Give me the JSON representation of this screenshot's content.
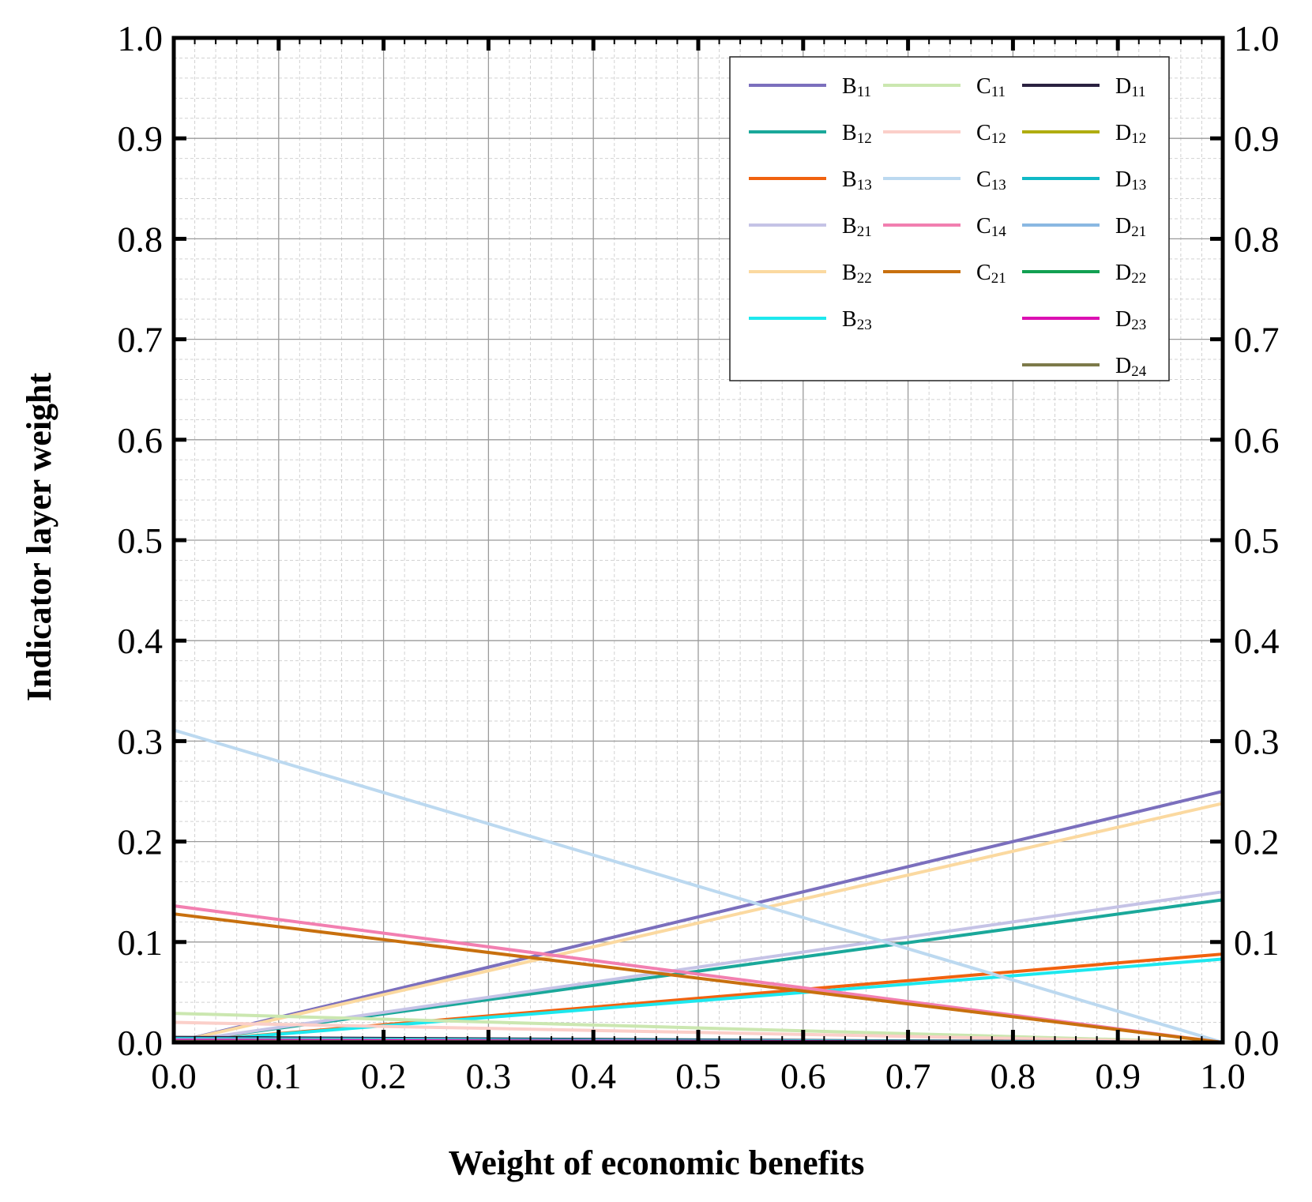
{
  "chart_data": {
    "type": "line",
    "xlabel": "Weight of economic benefits",
    "ylabel": "Indicator layer weight",
    "xlim": [
      0,
      1
    ],
    "ylim": [
      0,
      1
    ],
    "x_ticks": [
      "0.0",
      "0.1",
      "0.2",
      "0.3",
      "0.4",
      "0.5",
      "0.6",
      "0.7",
      "0.8",
      "0.9",
      "1.0"
    ],
    "y_ticks": [
      "0.0",
      "0.1",
      "0.2",
      "0.3",
      "0.4",
      "0.5",
      "0.6",
      "0.7",
      "0.8",
      "0.9",
      "1.0"
    ],
    "grid": true,
    "legend_position": "top-right",
    "x": [
      0,
      1
    ],
    "series": [
      {
        "name": "B11",
        "main": "B",
        "sub": "11",
        "color": "#7b6fbd",
        "values": [
          0.0,
          0.25
        ]
      },
      {
        "name": "B12",
        "main": "B",
        "sub": "12",
        "color": "#1aa89a",
        "values": [
          0.0,
          0.142
        ]
      },
      {
        "name": "B13",
        "main": "B",
        "sub": "13",
        "color": "#f0620f",
        "values": [
          0.0,
          0.088
        ]
      },
      {
        "name": "B21",
        "main": "B",
        "sub": "21",
        "color": "#c5c3e6",
        "values": [
          0.0,
          0.15
        ]
      },
      {
        "name": "B22",
        "main": "B",
        "sub": "22",
        "color": "#fbd9a0",
        "values": [
          0.0,
          0.238
        ]
      },
      {
        "name": "B23",
        "main": "B",
        "sub": "23",
        "color": "#1de8ee",
        "values": [
          0.0,
          0.083
        ]
      },
      {
        "name": "C11",
        "main": "C",
        "sub": "11",
        "color": "#cbe7b0",
        "values": [
          0.029,
          0.0
        ]
      },
      {
        "name": "C12",
        "main": "C",
        "sub": "12",
        "color": "#fbcfc9",
        "values": [
          0.02,
          0.0
        ]
      },
      {
        "name": "C13",
        "main": "C",
        "sub": "13",
        "color": "#bcd9f0",
        "values": [
          0.311,
          0.0
        ]
      },
      {
        "name": "C14",
        "main": "C",
        "sub": "14",
        "color": "#f27fb0",
        "values": [
          0.136,
          0.0
        ]
      },
      {
        "name": "C21",
        "main": "C",
        "sub": "21",
        "color": "#c8700e",
        "values": [
          0.128,
          0.0
        ]
      },
      {
        "name": "D11",
        "main": "D",
        "sub": "11",
        "color": "#2a2140",
        "values": [
          0.005,
          0.0
        ]
      },
      {
        "name": "D12",
        "main": "D",
        "sub": "12",
        "color": "#b0ad10",
        "values": [
          0.003,
          0.0
        ]
      },
      {
        "name": "D13",
        "main": "D",
        "sub": "13",
        "color": "#10b9c6",
        "values": [
          0.004,
          0.0
        ]
      },
      {
        "name": "D21",
        "main": "D",
        "sub": "21",
        "color": "#8ab8e2",
        "values": [
          0.003,
          0.0
        ]
      },
      {
        "name": "D22",
        "main": "D",
        "sub": "22",
        "color": "#12a052",
        "values": [
          0.002,
          0.0
        ]
      },
      {
        "name": "D23",
        "main": "D",
        "sub": "23",
        "color": "#dc10b2",
        "values": [
          0.002,
          0.0
        ]
      },
      {
        "name": "D24",
        "main": "D",
        "sub": "24",
        "color": "#7d7a4a",
        "values": [
          0.001,
          0.0
        ]
      }
    ]
  }
}
